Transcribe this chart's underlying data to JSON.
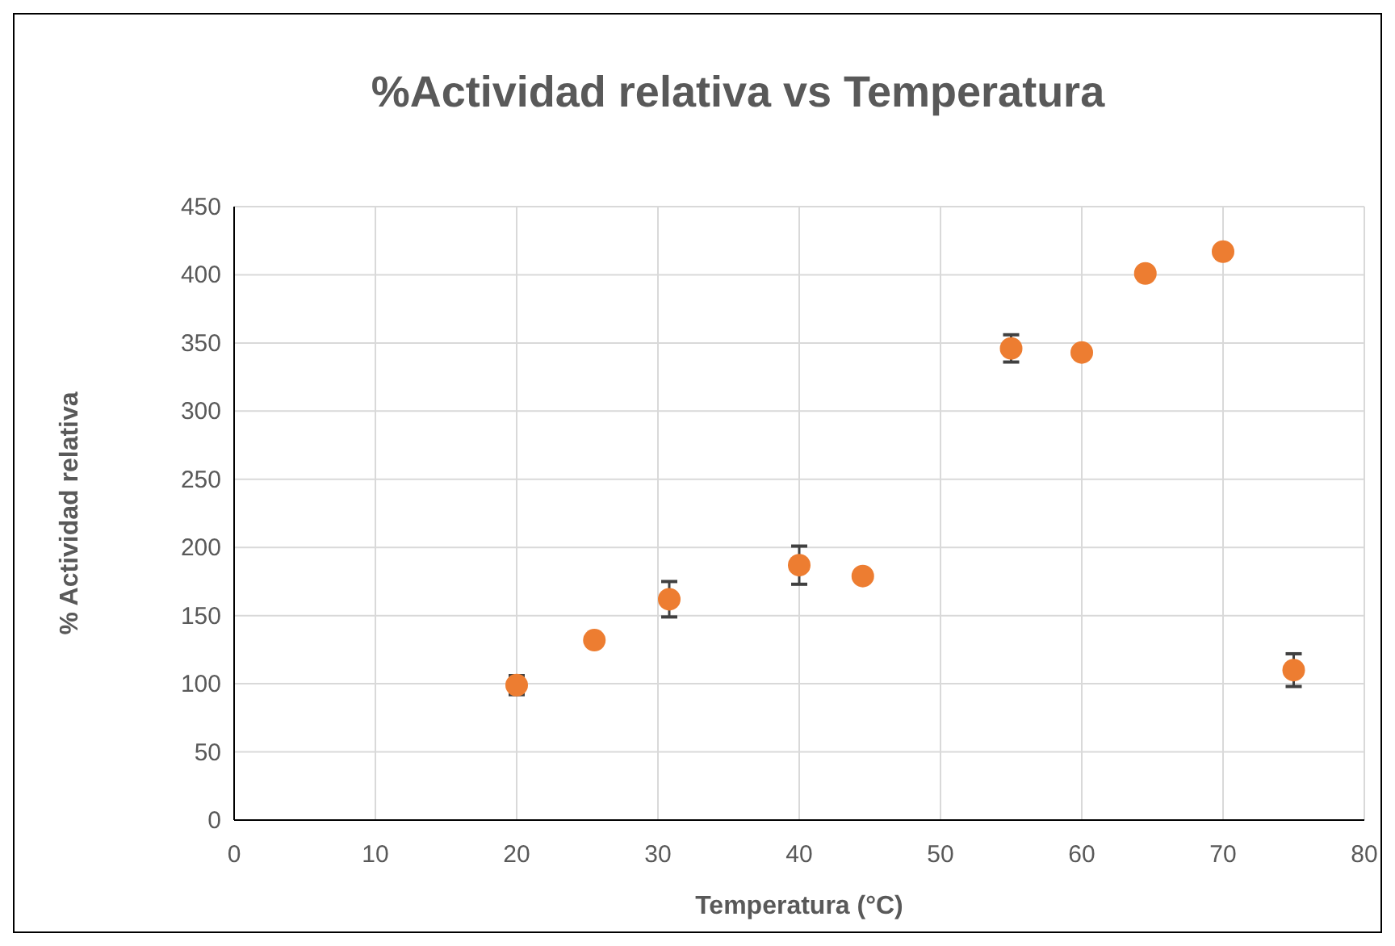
{
  "chart_data": {
    "type": "scatter",
    "title": "%Actividad relativa vs Temperatura",
    "xlabel": "Temperatura (°C)",
    "ylabel": "% Actividad relativa",
    "x": [
      20,
      25.5,
      30.8,
      40,
      44.5,
      55,
      60,
      64.5,
      70,
      75
    ],
    "series": [
      {
        "color": "#ed7d31",
        "values": [
          99,
          132,
          162,
          187,
          179,
          346,
          343,
          401,
          417,
          110
        ],
        "errors": [
          7,
          null,
          13,
          14,
          null,
          10,
          null,
          null,
          null,
          12
        ]
      }
    ],
    "xlim": [
      0,
      80
    ],
    "xticks": [
      0,
      10,
      20,
      30,
      40,
      50,
      60,
      70,
      80
    ],
    "ylim": [
      0,
      450
    ],
    "yticks": [
      0,
      50,
      100,
      150,
      200,
      250,
      300,
      350,
      400,
      450
    ],
    "grid": true,
    "marker": "circle"
  }
}
